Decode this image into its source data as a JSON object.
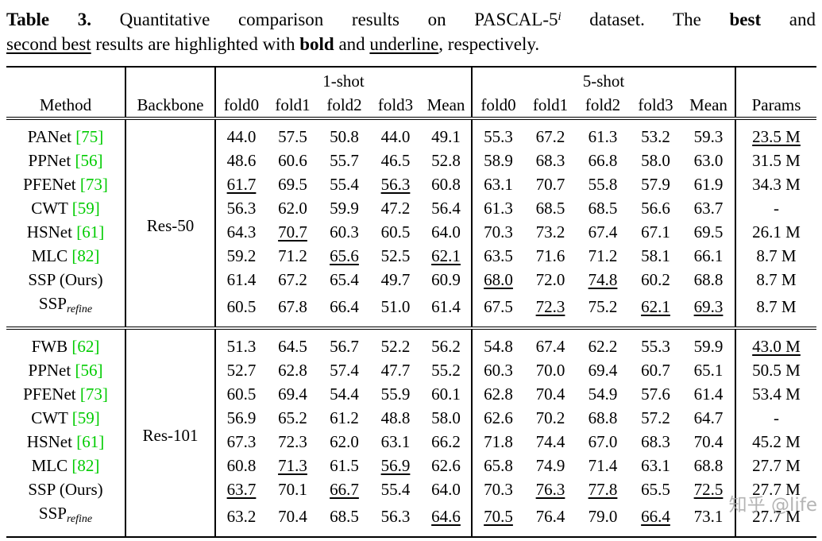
{
  "caption": {
    "line1": [
      {
        "t": "Table 3.",
        "s": "b"
      },
      {
        "t": " Quantitative comparison results on PASCAL-5",
        "s": "n"
      },
      {
        "t": "i",
        "s": "sup"
      },
      {
        "t": " dataset. The ",
        "s": "n"
      },
      {
        "t": "best",
        "s": "b"
      },
      {
        "t": " and",
        "s": "n"
      }
    ],
    "line2": [
      {
        "t": "second best",
        "s": "u"
      },
      {
        "t": " results are highlighted with ",
        "s": "n"
      },
      {
        "t": "bold",
        "s": "b"
      },
      {
        "t": " and ",
        "s": "n"
      },
      {
        "t": "underline",
        "s": "u"
      },
      {
        "t": ", respectively.",
        "s": "n"
      }
    ]
  },
  "colors": {
    "citation": "#00cc00",
    "watermark": "#a8a8a8"
  },
  "watermark": "知乎 @life",
  "table": {
    "header": {
      "method": "Method",
      "backbone": "Backbone",
      "oneshot": "1-shot",
      "fiveshot": "5-shot",
      "params": "Params",
      "subcols": [
        "fold0",
        "fold1",
        "fold2",
        "fold3",
        "Mean"
      ]
    },
    "groups": [
      {
        "backbone": "Res-50",
        "rows": [
          {
            "method": "PANet",
            "cite": "75",
            "sub": "",
            "oneshot": [
              [
                "44.0",
                "n"
              ],
              [
                "57.5",
                "n"
              ],
              [
                "50.8",
                "n"
              ],
              [
                "44.0",
                "n"
              ],
              [
                "49.1",
                "n"
              ]
            ],
            "fiveshot": [
              [
                "55.3",
                "n"
              ],
              [
                "67.2",
                "n"
              ],
              [
                "61.3",
                "n"
              ],
              [
                "53.2",
                "n"
              ],
              [
                "59.3",
                "n"
              ]
            ],
            "params": [
              "23.5 M",
              "u"
            ]
          },
          {
            "method": "PPNet",
            "cite": "56",
            "sub": "",
            "oneshot": [
              [
                "48.6",
                "n"
              ],
              [
                "60.6",
                "n"
              ],
              [
                "55.7",
                "n"
              ],
              [
                "46.5",
                "n"
              ],
              [
                "52.8",
                "n"
              ]
            ],
            "fiveshot": [
              [
                "58.9",
                "n"
              ],
              [
                "68.3",
                "n"
              ],
              [
                "66.8",
                "n"
              ],
              [
                "58.0",
                "n"
              ],
              [
                "63.0",
                "n"
              ]
            ],
            "params": [
              "31.5 M",
              "n"
            ]
          },
          {
            "method": "PFENet",
            "cite": "73",
            "sub": "",
            "oneshot": [
              [
                "61.7",
                "u"
              ],
              [
                "69.5",
                "n"
              ],
              [
                "55.4",
                "n"
              ],
              [
                "56.3",
                "u"
              ],
              [
                "60.8",
                "n"
              ]
            ],
            "fiveshot": [
              [
                "63.1",
                "n"
              ],
              [
                "70.7",
                "n"
              ],
              [
                "55.8",
                "n"
              ],
              [
                "57.9",
                "n"
              ],
              [
                "61.9",
                "n"
              ]
            ],
            "params": [
              "34.3 M",
              "n"
            ]
          },
          {
            "method": "CWT",
            "cite": "59",
            "sub": "",
            "oneshot": [
              [
                "56.3",
                "n"
              ],
              [
                "62.0",
                "n"
              ],
              [
                "59.9",
                "n"
              ],
              [
                "47.2",
                "n"
              ],
              [
                "56.4",
                "n"
              ]
            ],
            "fiveshot": [
              [
                "61.3",
                "n"
              ],
              [
                "68.5",
                "n"
              ],
              [
                "68.5",
                "n"
              ],
              [
                "56.6",
                "n"
              ],
              [
                "63.7",
                "n"
              ]
            ],
            "params": [
              "-",
              "n"
            ]
          },
          {
            "method": "HSNet",
            "cite": "61",
            "sub": "",
            "oneshot": [
              [
                "64.3",
                "b"
              ],
              [
                "70.7",
                "u"
              ],
              [
                "60.3",
                "n"
              ],
              [
                "60.5",
                "b"
              ],
              [
                "64.0",
                "b"
              ]
            ],
            "fiveshot": [
              [
                "70.3",
                "b"
              ],
              [
                "73.2",
                "b"
              ],
              [
                "67.4",
                "n"
              ],
              [
                "67.1",
                "b"
              ],
              [
                "69.5",
                "b"
              ]
            ],
            "params": [
              "26.1 M",
              "n"
            ]
          },
          {
            "method": "MLC",
            "cite": "82",
            "sub": "",
            "oneshot": [
              [
                "59.2",
                "n"
              ],
              [
                "71.2",
                "b"
              ],
              [
                "65.6",
                "u"
              ],
              [
                "52.5",
                "n"
              ],
              [
                "62.1",
                "u"
              ]
            ],
            "fiveshot": [
              [
                "63.5",
                "n"
              ],
              [
                "71.6",
                "n"
              ],
              [
                "71.2",
                "n"
              ],
              [
                "58.1",
                "n"
              ],
              [
                "66.1",
                "n"
              ]
            ],
            "params": [
              "8.7 M",
              "b"
            ]
          },
          {
            "method": "SSP (Ours)",
            "cite": "",
            "sub": "",
            "oneshot": [
              [
                "61.4",
                "n"
              ],
              [
                "67.2",
                "n"
              ],
              [
                "65.4",
                "n"
              ],
              [
                "49.7",
                "n"
              ],
              [
                "60.9",
                "n"
              ]
            ],
            "fiveshot": [
              [
                "68.0",
                "u"
              ],
              [
                "72.0",
                "n"
              ],
              [
                "74.8",
                "u"
              ],
              [
                "60.2",
                "n"
              ],
              [
                "68.8",
                "n"
              ]
            ],
            "params": [
              "8.7 M",
              "b"
            ]
          },
          {
            "method": "SSP",
            "cite": "",
            "sub": "refine",
            "oneshot": [
              [
                "60.5",
                "n"
              ],
              [
                "67.8",
                "n"
              ],
              [
                "66.4",
                "b"
              ],
              [
                "51.0",
                "n"
              ],
              [
                "61.4",
                "n"
              ]
            ],
            "fiveshot": [
              [
                "67.5",
                "n"
              ],
              [
                "72.3",
                "u"
              ],
              [
                "75.2",
                "b"
              ],
              [
                "62.1",
                "u"
              ],
              [
                "69.3",
                "u"
              ]
            ],
            "params": [
              "8.7 M",
              "b"
            ]
          }
        ]
      },
      {
        "backbone": "Res-101",
        "rows": [
          {
            "method": "FWB",
            "cite": "62",
            "sub": "",
            "oneshot": [
              [
                "51.3",
                "n"
              ],
              [
                "64.5",
                "n"
              ],
              [
                "56.7",
                "n"
              ],
              [
                "52.2",
                "n"
              ],
              [
                "56.2",
                "n"
              ]
            ],
            "fiveshot": [
              [
                "54.8",
                "n"
              ],
              [
                "67.4",
                "n"
              ],
              [
                "62.2",
                "n"
              ],
              [
                "55.3",
                "n"
              ],
              [
                "59.9",
                "n"
              ]
            ],
            "params": [
              "43.0 M",
              "u"
            ]
          },
          {
            "method": "PPNet",
            "cite": "56",
            "sub": "",
            "oneshot": [
              [
                "52.7",
                "n"
              ],
              [
                "62.8",
                "n"
              ],
              [
                "57.4",
                "n"
              ],
              [
                "47.7",
                "n"
              ],
              [
                "55.2",
                "n"
              ]
            ],
            "fiveshot": [
              [
                "60.3",
                "n"
              ],
              [
                "70.0",
                "n"
              ],
              [
                "69.4",
                "n"
              ],
              [
                "60.7",
                "n"
              ],
              [
                "65.1",
                "n"
              ]
            ],
            "params": [
              "50.5 M",
              "n"
            ]
          },
          {
            "method": "PFENet",
            "cite": "73",
            "sub": "",
            "oneshot": [
              [
                "60.5",
                "n"
              ],
              [
                "69.4",
                "n"
              ],
              [
                "54.4",
                "n"
              ],
              [
                "55.9",
                "n"
              ],
              [
                "60.1",
                "n"
              ]
            ],
            "fiveshot": [
              [
                "62.8",
                "n"
              ],
              [
                "70.4",
                "n"
              ],
              [
                "54.9",
                "n"
              ],
              [
                "57.6",
                "n"
              ],
              [
                "61.4",
                "n"
              ]
            ],
            "params": [
              "53.4 M",
              "n"
            ]
          },
          {
            "method": "CWT",
            "cite": "59",
            "sub": "",
            "oneshot": [
              [
                "56.9",
                "n"
              ],
              [
                "65.2",
                "n"
              ],
              [
                "61.2",
                "n"
              ],
              [
                "48.8",
                "n"
              ],
              [
                "58.0",
                "n"
              ]
            ],
            "fiveshot": [
              [
                "62.6",
                "n"
              ],
              [
                "70.2",
                "n"
              ],
              [
                "68.8",
                "n"
              ],
              [
                "57.2",
                "n"
              ],
              [
                "64.7",
                "n"
              ]
            ],
            "params": [
              "-",
              "n"
            ]
          },
          {
            "method": "HSNet",
            "cite": "61",
            "sub": "",
            "oneshot": [
              [
                "67.3",
                "b"
              ],
              [
                "72.3",
                "b"
              ],
              [
                "62.0",
                "n"
              ],
              [
                "63.1",
                "b"
              ],
              [
                "66.2",
                "b"
              ]
            ],
            "fiveshot": [
              [
                "71.8",
                "b"
              ],
              [
                "74.4",
                "n"
              ],
              [
                "67.0",
                "n"
              ],
              [
                "68.3",
                "b"
              ],
              [
                "70.4",
                "n"
              ]
            ],
            "params": [
              "45.2 M",
              "n"
            ]
          },
          {
            "method": "MLC",
            "cite": "82",
            "sub": "",
            "oneshot": [
              [
                "60.8",
                "n"
              ],
              [
                "71.3",
                "u"
              ],
              [
                "61.5",
                "n"
              ],
              [
                "56.9",
                "u"
              ],
              [
                "62.6",
                "n"
              ]
            ],
            "fiveshot": [
              [
                "65.8",
                "n"
              ],
              [
                "74.9",
                "n"
              ],
              [
                "71.4",
                "n"
              ],
              [
                "63.1",
                "n"
              ],
              [
                "68.8",
                "n"
              ]
            ],
            "params": [
              "27.7 M",
              "b"
            ]
          },
          {
            "method": "SSP (Ours)",
            "cite": "",
            "sub": "",
            "oneshot": [
              [
                "63.7",
                "u"
              ],
              [
                "70.1",
                "n"
              ],
              [
                "66.7",
                "u"
              ],
              [
                "55.4",
                "n"
              ],
              [
                "64.0",
                "n"
              ]
            ],
            "fiveshot": [
              [
                "70.3",
                "n"
              ],
              [
                "76.3",
                "u"
              ],
              [
                "77.8",
                "u"
              ],
              [
                "65.5",
                "n"
              ],
              [
                "72.5",
                "u"
              ]
            ],
            "params": [
              "27.7 M",
              "b"
            ]
          },
          {
            "method": "SSP",
            "cite": "",
            "sub": "refine",
            "oneshot": [
              [
                "63.2",
                "n"
              ],
              [
                "70.4",
                "n"
              ],
              [
                "68.5",
                "b"
              ],
              [
                "56.3",
                "n"
              ],
              [
                "64.6",
                "u"
              ]
            ],
            "fiveshot": [
              [
                "70.5",
                "u"
              ],
              [
                "76.4",
                "b"
              ],
              [
                "79.0",
                "b"
              ],
              [
                "66.4",
                "u"
              ],
              [
                "73.1",
                "b"
              ]
            ],
            "params": [
              "27.7 M",
              "b"
            ]
          }
        ]
      }
    ]
  }
}
